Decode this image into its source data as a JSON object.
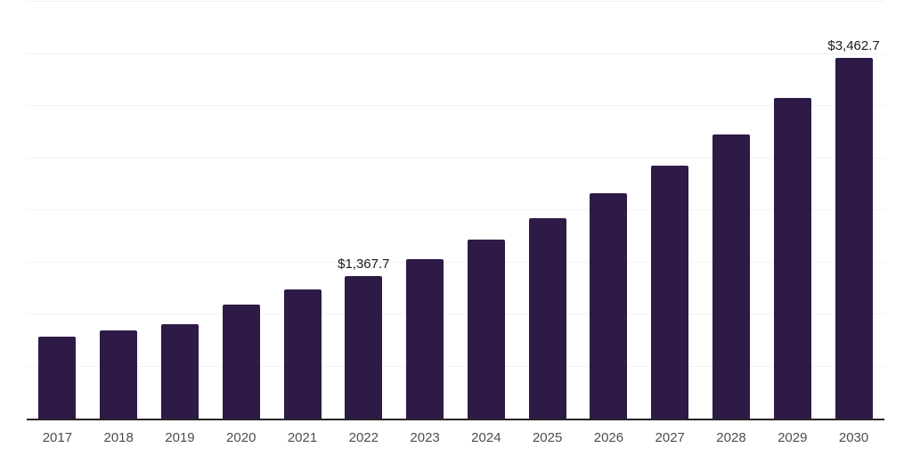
{
  "chart_style": {
    "background_color": "#ffffff",
    "bar_color": "#2e1a47",
    "gridline_color": "#f2f2f2",
    "axis_line_color": "#262626",
    "tick_label_color": "#4d4d4d",
    "value_label_color": "#1a1a1a"
  },
  "chart_data": {
    "type": "bar",
    "title": "",
    "xlabel": "",
    "ylabel": "",
    "categories": [
      "2017",
      "2018",
      "2019",
      "2020",
      "2021",
      "2022",
      "2023",
      "2024",
      "2025",
      "2026",
      "2027",
      "2028",
      "2029",
      "2030"
    ],
    "values": [
      790,
      850,
      910,
      1090,
      1240,
      1367.7,
      1530,
      1720,
      1920,
      2160,
      2425,
      2730,
      3080,
      3462.7
    ],
    "value_labels": [
      null,
      null,
      null,
      null,
      null,
      "$1,367.7",
      null,
      null,
      null,
      null,
      null,
      null,
      null,
      "$3,462.7"
    ],
    "ylim": [
      0,
      4000
    ],
    "gridline_interval": 500,
    "grid": "horizontal",
    "y_tick_labels_visible": false,
    "legend": "none"
  }
}
